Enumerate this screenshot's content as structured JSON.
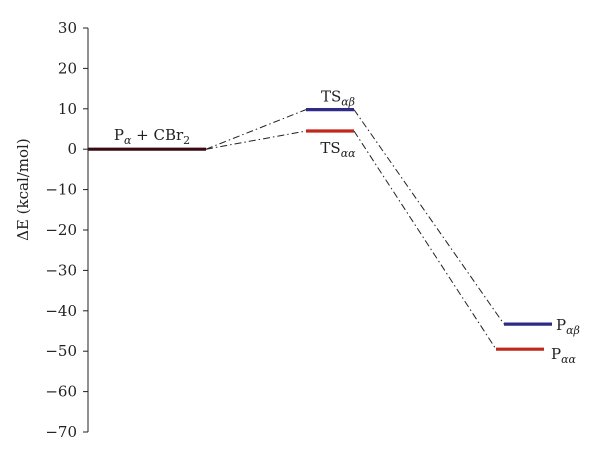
{
  "chart_data": {
    "type": "line",
    "title": "",
    "xlabel": "",
    "ylabel": "ΔE (kcal/mol)",
    "ylim": [
      -70,
      30
    ],
    "yticks": [
      30,
      20,
      10,
      0,
      -10,
      -20,
      -30,
      -40,
      -50,
      -60,
      -70
    ],
    "grid": false,
    "levels": [
      {
        "id": "reactant",
        "label_main": "P",
        "label_sub": "α",
        "label_suffix": " + CBr",
        "label_suffix_sub": "2",
        "value": 0,
        "color": "#3a0a12"
      },
      {
        "id": "ts-ab",
        "label_main": "TS",
        "label_sub": "αβ",
        "label_suffix": "",
        "label_suffix_sub": "",
        "value": 9.8,
        "color": "#2e2a86"
      },
      {
        "id": "ts-aa",
        "label_main": "TS",
        "label_sub": "αα",
        "label_suffix": "",
        "label_suffix_sub": "",
        "value": 4.5,
        "color": "#c0281c"
      },
      {
        "id": "p-ab",
        "label_main": "P",
        "label_sub": "αβ",
        "label_suffix": "",
        "label_suffix_sub": "",
        "value": -43.3,
        "color": "#2e2a86"
      },
      {
        "id": "p-aa",
        "label_main": "P",
        "label_sub": "αα",
        "label_suffix": "",
        "label_suffix_sub": "",
        "value": -49.5,
        "color": "#c0281c"
      }
    ],
    "connectors": [
      {
        "from": "reactant",
        "to": "ts-ab"
      },
      {
        "from": "reactant",
        "to": "ts-aa"
      },
      {
        "from": "ts-ab",
        "to": "p-ab"
      },
      {
        "from": "ts-aa",
        "to": "p-aa"
      }
    ]
  }
}
